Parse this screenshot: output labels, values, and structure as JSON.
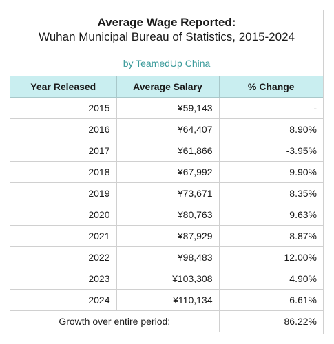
{
  "title": "Average Wage Reported:",
  "subtitle": "Wuhan Municipal Bureau of Statistics, 2015-2024",
  "byline": "by TeamedUp China",
  "chart_data": {
    "type": "table",
    "columns": [
      "Year Released",
      "Average Salary",
      "% Change"
    ],
    "rows": [
      [
        "2015",
        "¥59,143",
        "-"
      ],
      [
        "2016",
        "¥64,407",
        "8.90%"
      ],
      [
        "2017",
        "¥61,866",
        "-3.95%"
      ],
      [
        "2018",
        "¥67,992",
        "9.90%"
      ],
      [
        "2019",
        "¥73,671",
        "8.35%"
      ],
      [
        "2020",
        "¥80,763",
        "9.63%"
      ],
      [
        "2021",
        "¥87,929",
        "8.87%"
      ],
      [
        "2022",
        "¥98,483",
        "12.00%"
      ],
      [
        "2023",
        "¥103,308",
        "4.90%"
      ],
      [
        "2024",
        "¥110,134",
        "6.61%"
      ]
    ],
    "footer": {
      "label": "Growth over entire period:",
      "value": "86.22%"
    }
  }
}
